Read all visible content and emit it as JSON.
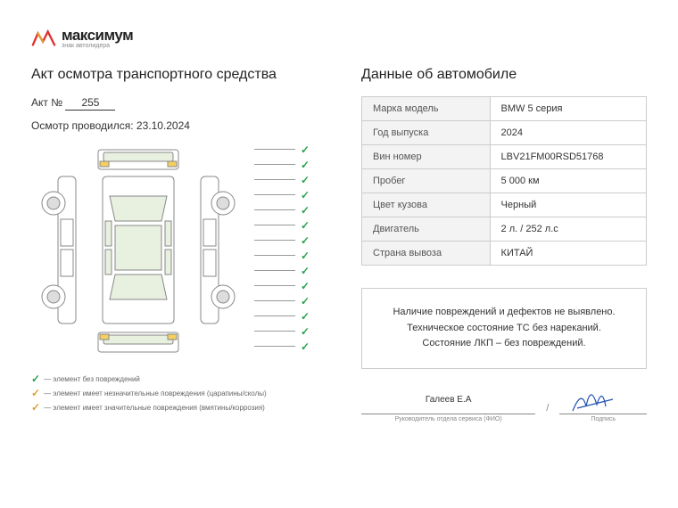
{
  "logo": {
    "name": "максимум",
    "sub": "знак автолидера"
  },
  "left": {
    "title": "Акт осмотра транспортного средства",
    "act_no_label": "Акт №",
    "act_no": "255",
    "date_label": "Осмотр проводился:",
    "date": "23.10.2024"
  },
  "right": {
    "title": "Данные об автомобиле"
  },
  "table": {
    "rows": [
      {
        "label": "Марка модель",
        "value": "BMW 5 серия"
      },
      {
        "label": "Год выпуска",
        "value": "2024"
      },
      {
        "label": "Вин номер",
        "value": "LBV21FM00RSD51768"
      },
      {
        "label": "Пробег",
        "value": "5 000 км"
      },
      {
        "label": "Цвет кузова",
        "value": "Черный"
      },
      {
        "label": "Двигатель",
        "value": "2 л. / 252 л.с"
      },
      {
        "label": "Страна вывоза",
        "value": "КИТАЙ"
      }
    ]
  },
  "status": {
    "line1": "Наличие повреждений и дефектов не выявлено.",
    "line2": "Техническое состояние ТС без нареканий.",
    "line3": "Состояние ЛКП – без повреждений."
  },
  "legend": {
    "ok": "— элемент без повреждений",
    "minor": "— элемент имеет незначительные повреждения (царапины/сколы)",
    "major": "— элемент имеет значительные повреждения (вмятины/коррозия)"
  },
  "sign": {
    "name": "Галеев Е.А",
    "label1": "Руководитель отдела сервиса (ФИО)",
    "label2": "Подпись"
  },
  "colors": {
    "green": "#2aa050",
    "orange": "#e0a030",
    "border": "#cccccc",
    "row_bg": "#f3f3f3"
  },
  "check_count": 14
}
